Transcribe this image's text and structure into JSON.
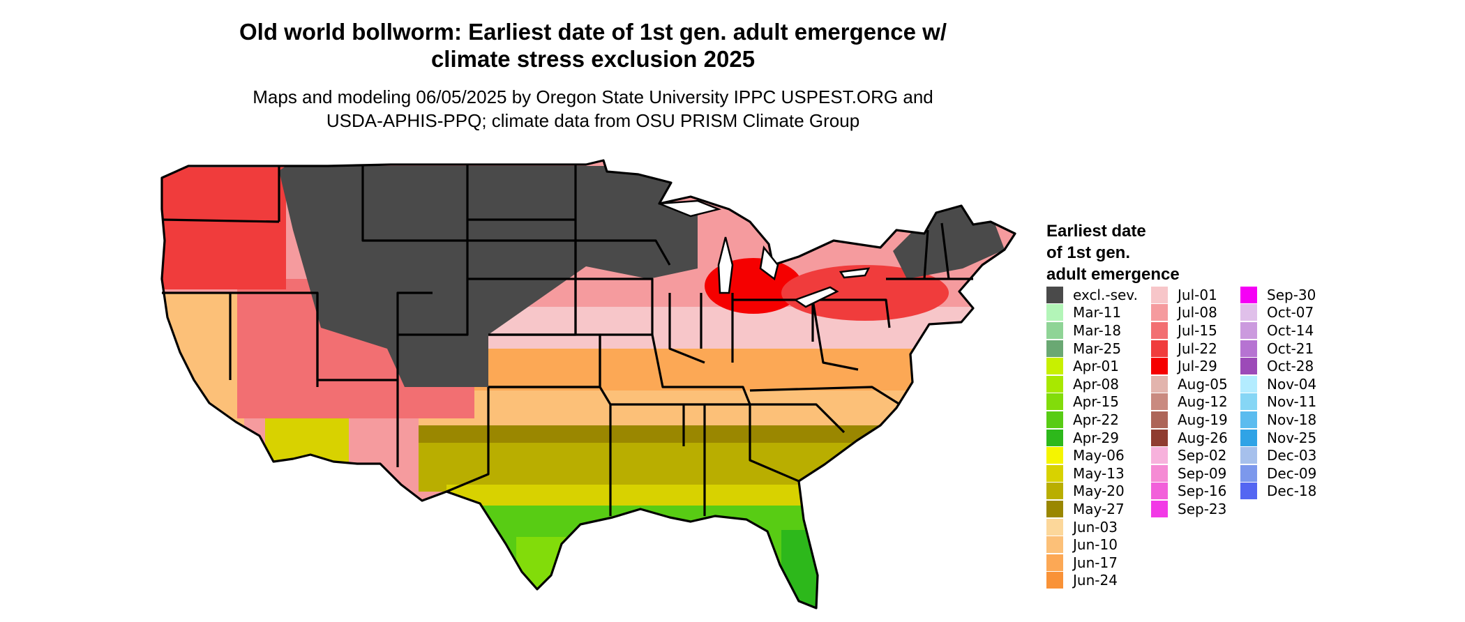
{
  "title": "Old world bollworm: Earliest date of 1st gen. adult emergence w/\nclimate stress exclusion 2025",
  "subtitle": "Maps and modeling 06/05/2025 by Oregon State University IPPC USPEST.ORG and\nUSDA-APHIS-PPQ; climate data from OSU PRISM Climate Group",
  "legend": {
    "title": "Earliest date\nof 1st gen.\nadult emergence",
    "items": [
      {
        "label": "excl.-sev.",
        "color": "#4a4a4a"
      },
      {
        "label": "Mar-11",
        "color": "#b3f5b8"
      },
      {
        "label": "Mar-18",
        "color": "#8fd496"
      },
      {
        "label": "Mar-25",
        "color": "#6aa873"
      },
      {
        "label": "Apr-01",
        "color": "#c8f000"
      },
      {
        "label": "Apr-08",
        "color": "#a8e800"
      },
      {
        "label": "Apr-15",
        "color": "#82dc0a"
      },
      {
        "label": "Apr-22",
        "color": "#58cc14"
      },
      {
        "label": "Apr-29",
        "color": "#2db81b"
      },
      {
        "label": "May-06",
        "color": "#f5f500"
      },
      {
        "label": "May-13",
        "color": "#d8d200"
      },
      {
        "label": "May-20",
        "color": "#b9ae00"
      },
      {
        "label": "May-27",
        "color": "#9a8700"
      },
      {
        "label": "Jun-03",
        "color": "#fcd79a"
      },
      {
        "label": "Jun-10",
        "color": "#fcc078"
      },
      {
        "label": "Jun-17",
        "color": "#fca855"
      },
      {
        "label": "Jun-24",
        "color": "#f99237"
      },
      {
        "label": "Jul-01",
        "color": "#f7c6c9"
      },
      {
        "label": "Jul-08",
        "color": "#f59b9e"
      },
      {
        "label": "Jul-15",
        "color": "#f26f72"
      },
      {
        "label": "Jul-22",
        "color": "#f03c3c"
      },
      {
        "label": "Jul-29",
        "color": "#f50000"
      },
      {
        "label": "Aug-05",
        "color": "#e2b4ad"
      },
      {
        "label": "Aug-12",
        "color": "#c98a80"
      },
      {
        "label": "Aug-19",
        "color": "#ad6558"
      },
      {
        "label": "Aug-26",
        "color": "#8f3c30"
      },
      {
        "label": "Sep-02",
        "color": "#f7b2dc"
      },
      {
        "label": "Sep-09",
        "color": "#f58bd4"
      },
      {
        "label": "Sep-16",
        "color": "#f260da"
      },
      {
        "label": "Sep-23",
        "color": "#f23ae6"
      },
      {
        "label": "Sep-30",
        "color": "#f500f5"
      },
      {
        "label": "Oct-07",
        "color": "#e0c0ea"
      },
      {
        "label": "Oct-14",
        "color": "#cb9ade"
      },
      {
        "label": "Oct-21",
        "color": "#b673d2"
      },
      {
        "label": "Oct-28",
        "color": "#9c4ab8"
      },
      {
        "label": "Nov-04",
        "color": "#b3ecff"
      },
      {
        "label": "Nov-11",
        "color": "#86d6f5"
      },
      {
        "label": "Nov-18",
        "color": "#5bbcef"
      },
      {
        "label": "Nov-25",
        "color": "#2fa3e6"
      },
      {
        "label": "Dec-03",
        "color": "#a6c0ec"
      },
      {
        "label": "Dec-09",
        "color": "#7c98ec"
      },
      {
        "label": "Dec-18",
        "color": "#5466f2"
      }
    ]
  }
}
